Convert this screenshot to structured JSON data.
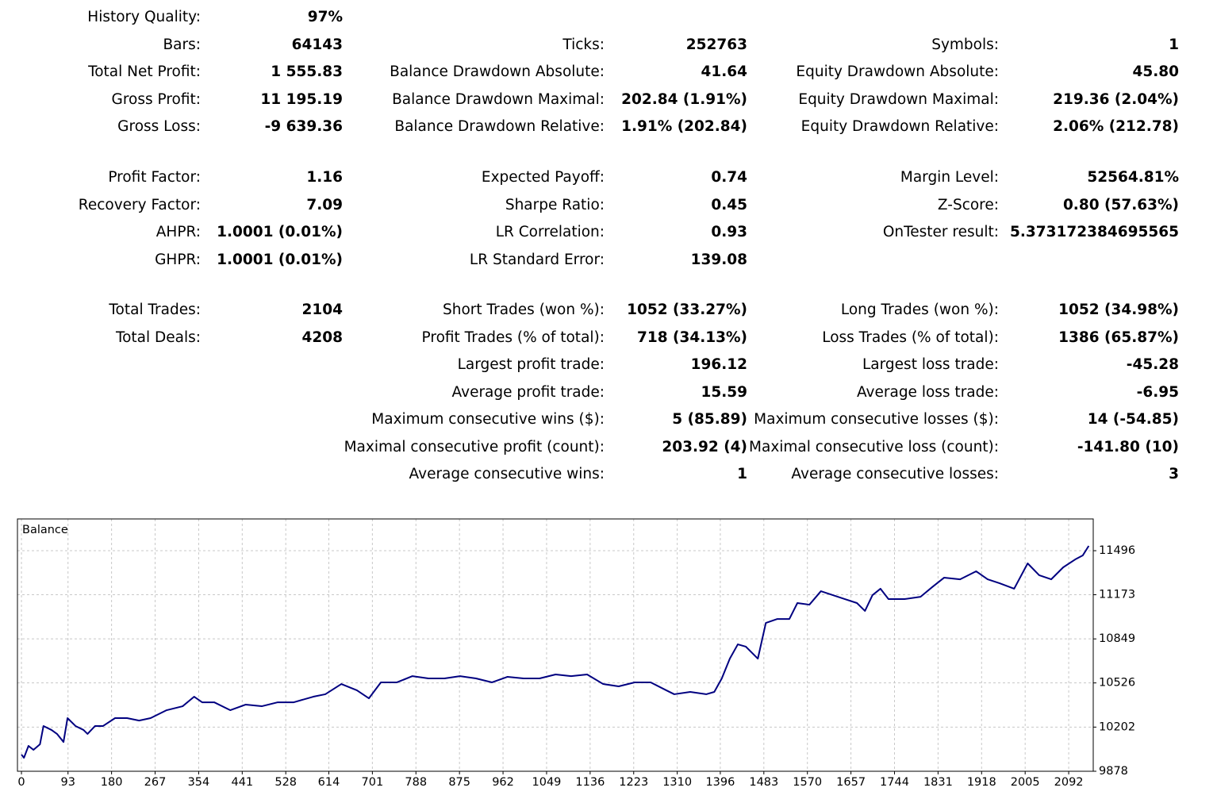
{
  "report": {
    "sections": [
      {
        "rows": [
          [
            {
              "label": "History Quality:",
              "value": "97%"
            },
            null,
            null
          ],
          [
            {
              "label": "Bars:",
              "value": "64143"
            },
            {
              "label": "Ticks:",
              "value": "252763"
            },
            {
              "label": "Symbols:",
              "value": "1"
            }
          ],
          [
            {
              "label": "Total Net Profit:",
              "value": "1 555.83"
            },
            {
              "label": "Balance Drawdown Absolute:",
              "value": "41.64"
            },
            {
              "label": "Equity Drawdown Absolute:",
              "value": "45.80"
            }
          ],
          [
            {
              "label": "Gross Profit:",
              "value": "11 195.19"
            },
            {
              "label": "Balance Drawdown Maximal:",
              "value": "202.84 (1.91%)"
            },
            {
              "label": "Equity Drawdown Maximal:",
              "value": "219.36 (2.04%)"
            }
          ],
          [
            {
              "label": "Gross Loss:",
              "value": "-9 639.36"
            },
            {
              "label": "Balance Drawdown Relative:",
              "value": "1.91% (202.84)"
            },
            {
              "label": "Equity Drawdown Relative:",
              "value": "2.06% (212.78)"
            }
          ]
        ]
      },
      {
        "rows": [
          [
            {
              "label": "Profit Factor:",
              "value": "1.16"
            },
            {
              "label": "Expected Payoff:",
              "value": "0.74"
            },
            {
              "label": "Margin Level:",
              "value": "52564.81%"
            }
          ],
          [
            {
              "label": "Recovery Factor:",
              "value": "7.09"
            },
            {
              "label": "Sharpe Ratio:",
              "value": "0.45"
            },
            {
              "label": "Z-Score:",
              "value": "0.80 (57.63%)"
            }
          ],
          [
            {
              "label": "AHPR:",
              "value": "1.0001 (0.01%)"
            },
            {
              "label": "LR Correlation:",
              "value": "0.93"
            },
            {
              "label": "OnTester result:",
              "value": "5.373172384695565"
            }
          ],
          [
            {
              "label": "GHPR:",
              "value": "1.0001 (0.01%)"
            },
            {
              "label": "LR Standard Error:",
              "value": "139.08"
            },
            null
          ]
        ]
      },
      {
        "rows": [
          [
            {
              "label": "Total Trades:",
              "value": "2104"
            },
            {
              "label": "Short Trades (won %):",
              "value": "1052 (33.27%)"
            },
            {
              "label": "Long Trades (won %):",
              "value": "1052 (34.98%)"
            }
          ],
          [
            {
              "label": "Total Deals:",
              "value": "4208"
            },
            {
              "label": "Profit Trades (% of total):",
              "value": "718 (34.13%)"
            },
            {
              "label": "Loss Trades (% of total):",
              "value": "1386 (65.87%)"
            }
          ],
          [
            null,
            {
              "label": "Largest profit trade:",
              "value": "196.12"
            },
            {
              "label": "Largest loss trade:",
              "value": "-45.28"
            }
          ],
          [
            null,
            {
              "label": "Average profit trade:",
              "value": "15.59"
            },
            {
              "label": "Average loss trade:",
              "value": "-6.95"
            }
          ],
          [
            null,
            {
              "label": "Maximum consecutive wins ($):",
              "value": "5 (85.89)"
            },
            {
              "label": "Maximum consecutive losses ($):",
              "value": "14 (-54.85)"
            }
          ],
          [
            null,
            {
              "label": "Maximal consecutive profit (count):",
              "value": "203.92 (4)"
            },
            {
              "label": "Maximal consecutive loss (count):",
              "value": "-141.80 (10)"
            }
          ],
          [
            null,
            {
              "label": "Average consecutive wins:",
              "value": "1"
            },
            {
              "label": "Average consecutive losses:",
              "value": "3"
            }
          ]
        ]
      }
    ]
  },
  "chart_data": {
    "type": "line",
    "title": "Balance",
    "color": "#000080",
    "grid": true,
    "x": [
      0,
      5,
      14,
      24,
      37,
      44,
      60,
      71,
      84,
      92,
      108,
      124,
      132,
      147,
      163,
      187,
      211,
      235,
      258,
      290,
      322,
      345,
      361,
      385,
      417,
      448,
      480,
      512,
      544,
      583,
      607,
      639,
      670,
      694,
      718,
      750,
      781,
      813,
      845,
      876,
      908,
      940,
      971,
      1003,
      1035,
      1067,
      1098,
      1130,
      1162,
      1193,
      1225,
      1257,
      1288,
      1304,
      1336,
      1368,
      1384,
      1399,
      1415,
      1431,
      1447,
      1471,
      1487,
      1510,
      1534,
      1550,
      1574,
      1597,
      1621,
      1645,
      1669,
      1685,
      1700,
      1716,
      1732,
      1764,
      1796,
      1819,
      1843,
      1875,
      1907,
      1930,
      1954,
      1983,
      2010,
      2033,
      2057,
      2081,
      2105,
      2120,
      2132
    ],
    "values": [
      10000,
      9977,
      10064,
      10035,
      10076,
      10210,
      10181,
      10152,
      10093,
      10268,
      10210,
      10181,
      10152,
      10210,
      10210,
      10268,
      10268,
      10250,
      10268,
      10326,
      10355,
      10425,
      10384,
      10384,
      10326,
      10367,
      10355,
      10384,
      10384,
      10425,
      10443,
      10518,
      10472,
      10413,
      10530,
      10530,
      10576,
      10559,
      10559,
      10576,
      10559,
      10530,
      10571,
      10559,
      10559,
      10588,
      10576,
      10588,
      10518,
      10501,
      10530,
      10530,
      10472,
      10443,
      10460,
      10443,
      10460,
      10559,
      10704,
      10809,
      10792,
      10704,
      10966,
      10995,
      10995,
      11112,
      11100,
      11199,
      11170,
      11141,
      11112,
      11054,
      11170,
      11217,
      11141,
      11141,
      11158,
      11228,
      11298,
      11286,
      11345,
      11286,
      11257,
      11217,
      11403,
      11316,
      11286,
      11374,
      11432,
      11461,
      11531
    ],
    "xlim": [
      -8,
      2141
    ],
    "ylim": [
      9878,
      11729
    ],
    "xticks": [
      0,
      93,
      180,
      267,
      354,
      441,
      528,
      614,
      701,
      788,
      875,
      962,
      1049,
      1136,
      1223,
      1310,
      1396,
      1483,
      1570,
      1657,
      1744,
      1831,
      1918,
      2005,
      2092
    ],
    "yticks": [
      9878,
      10202,
      10526,
      10849,
      11173,
      11496
    ]
  }
}
